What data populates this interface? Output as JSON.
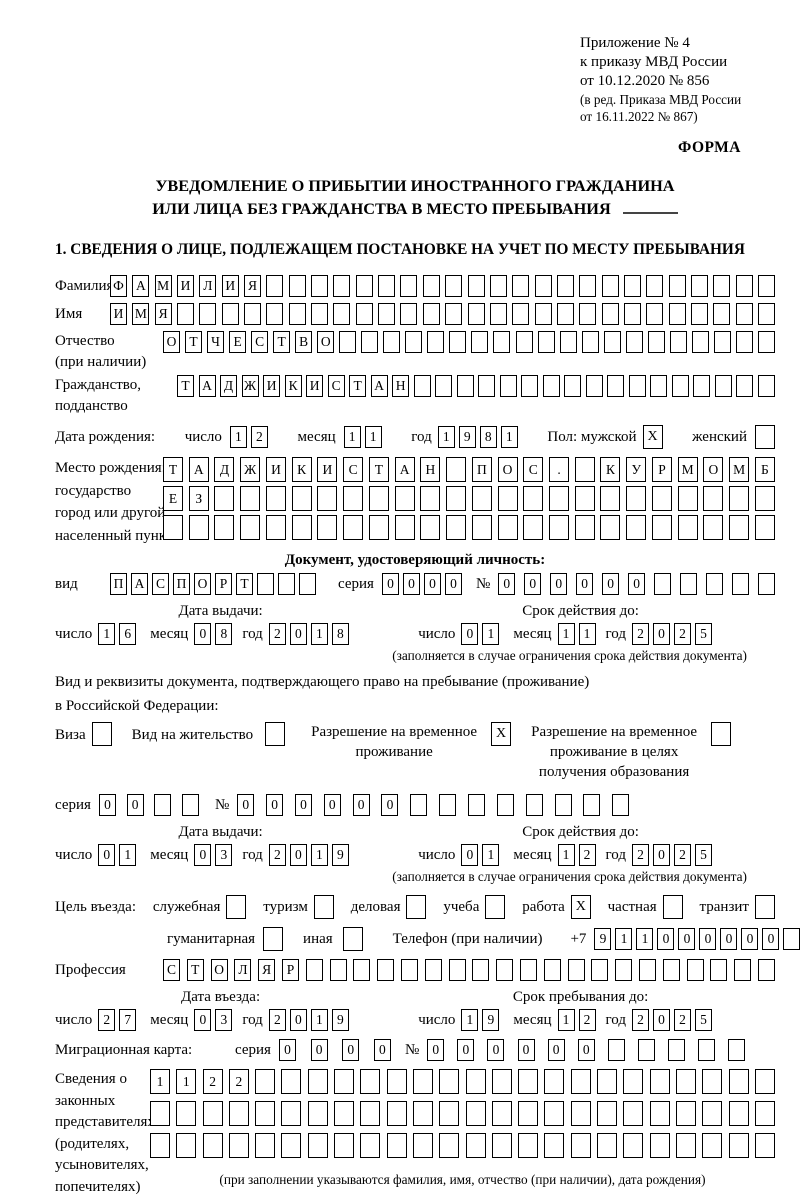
{
  "header": {
    "annex_line1": "Приложение № 4",
    "annex_line2": "к приказу МВД России",
    "annex_line3": "от 10.12.2020 № 856",
    "edition_line1": "(в ред. Приказа МВД России",
    "edition_line2": "от 16.11.2022 № 867)",
    "form_label": "ФОРМА"
  },
  "title": {
    "line1": "УВЕДОМЛЕНИЕ О ПРИБЫТИИ ИНОСТРАННОГО ГРАЖДАНИНА",
    "line2": "ИЛИ ЛИЦА БЕЗ ГРАЖДАНСТВА В МЕСТО ПРЕБЫВАНИЯ"
  },
  "section1_heading": "1. СВЕДЕНИЯ О ЛИЦЕ, ПОДЛЕЖАЩЕМ ПОСТАНОВКЕ НА УЧЕТ ПО МЕСТУ ПРЕБЫВАНИЯ",
  "date_labels": {
    "day": "число",
    "month": "месяц",
    "year": "год"
  },
  "shared": {
    "series_label": "серия",
    "number_label": "№"
  },
  "fields": {
    "surname": {
      "label": "Фамилия",
      "grid": {
        "value": "ФАМИЛИЯ",
        "count": 30
      }
    },
    "firstname": {
      "label": "Имя",
      "grid": {
        "value": "ИМЯ",
        "count": 30
      }
    },
    "patronymic": {
      "label1": "Отчество",
      "label2": "(при наличии)",
      "grid": {
        "value": "ОТЧЕСТВО",
        "count": 28
      }
    },
    "citizenship": {
      "label1": "Гражданство,",
      "label2": "подданство",
      "grid": {
        "value": "ТАДЖИКИСТАН",
        "count": 28
      }
    },
    "birth_date": {
      "label": "Дата рождения:",
      "day": "12",
      "month": "11",
      "year": "1981"
    },
    "sex": {
      "label_male": "Пол: мужской",
      "male_mark": "X",
      "label_female": "женский",
      "female_mark": ""
    },
    "birth_place": {
      "label1": "Место рождения:",
      "label2": "государство",
      "label3": "город или другой",
      "label4": "населенный пункт",
      "row1": {
        "value": "ТАДЖИКИСТАН ПОС. КУРМОМБ",
        "count": 24
      },
      "row2": {
        "value": "ЕЗ",
        "count": 24
      },
      "row3": {
        "value": "",
        "count": 24
      }
    }
  },
  "identity_doc": {
    "heading": "Документ, удостоверяющий личность:",
    "kind_label": "вид",
    "kind": {
      "value": "ПАСПОРТ",
      "count": 10
    },
    "series": {
      "value": "0000",
      "count": 4
    },
    "number": {
      "value": "000000",
      "count": 11
    },
    "issue": {
      "heading": "Дата выдачи:",
      "day": "16",
      "month": "08",
      "year": "2018"
    },
    "valid": {
      "heading": "Срок действия до:",
      "day": "01",
      "month": "11",
      "year": "2025"
    },
    "note": "(заполняется в случае ограничения срока действия документа)"
  },
  "residence_doc": {
    "intro1": "Вид и реквизиты документа, подтверждающего право на пребывание (проживание)",
    "intro2": "в Российской Федерации:",
    "opt_visa": {
      "label": "Виза",
      "mark": ""
    },
    "opt_residence_permit": {
      "label": "Вид на жительство",
      "mark": ""
    },
    "opt_temp_residence": {
      "label": "Разрешение на временное проживание",
      "mark": "X"
    },
    "opt_temp_residence_edu": {
      "label": "Разрешение на временное проживание в целях получения образования",
      "mark": ""
    },
    "series": {
      "value": "00",
      "count": 4
    },
    "number": {
      "value": "000000",
      "count": 14
    },
    "issue": {
      "heading": "Дата выдачи:",
      "day": "01",
      "month": "03",
      "year": "2019"
    },
    "valid": {
      "heading": "Срок действия до:",
      "day": "01",
      "month": "12",
      "year": "2025"
    },
    "note": "(заполняется в случае ограничения срока действия документа)"
  },
  "visit": {
    "purpose_label": "Цель въезда:",
    "opts1": [
      {
        "label": "служебная",
        "mark": ""
      },
      {
        "label": "туризм",
        "mark": ""
      },
      {
        "label": "деловая",
        "mark": ""
      },
      {
        "label": "учеба",
        "mark": ""
      },
      {
        "label": "работа",
        "mark": "X"
      },
      {
        "label": "частная",
        "mark": ""
      },
      {
        "label": "транзит",
        "mark": ""
      }
    ],
    "opts2": [
      {
        "label": "гуманитарная",
        "mark": ""
      },
      {
        "label": "иная",
        "mark": ""
      }
    ],
    "phone_label": "Телефон (при наличии)",
    "phone_prefix": "+7",
    "phone": {
      "value": "911000000",
      "count": 10
    },
    "profession_label": "Профессия",
    "profession": {
      "value": "СТОЛЯР",
      "count": 26
    }
  },
  "entry": {
    "date_heading": "Дата въезда:",
    "day": "27",
    "month": "03",
    "year": "2019",
    "until_heading": "Срок пребывания до:",
    "until_day": "19",
    "until_month": "12",
    "until_year": "2025"
  },
  "migration_card": {
    "label": "Миграционная карта:",
    "series": {
      "value": "0000",
      "count": 4
    },
    "number": {
      "value": "000000",
      "count": 11
    }
  },
  "representatives": {
    "label1": "Сведения о",
    "label2": "законных",
    "label3": "представителях",
    "label4": "(родителях,",
    "label5": "усыновителях,",
    "label6": "попечителях)",
    "row1": {
      "value": "1122",
      "count": 24
    },
    "row2": {
      "value": "",
      "count": 24
    },
    "row3": {
      "value": "",
      "count": 24
    },
    "note": "(при заполнении указываются фамилия, имя, отчество (при наличии), дата рождения)"
  }
}
